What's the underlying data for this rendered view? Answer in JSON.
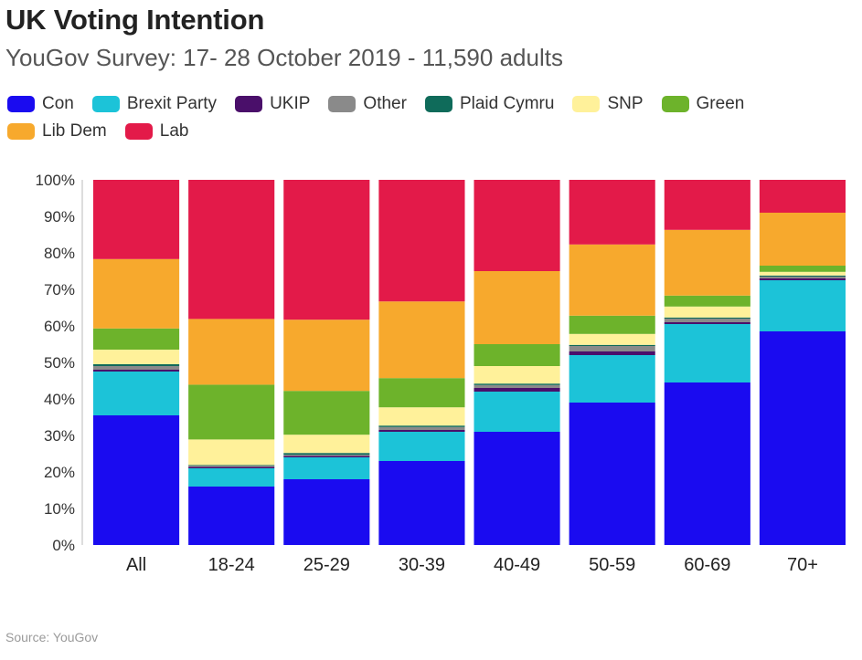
{
  "title": "UK Voting Intention",
  "subtitle": "YouGov Survey: 17- 28 October 2019 - 11,590 adults",
  "source": "Source: YouGov",
  "chart_data": {
    "type": "bar",
    "stacked": true,
    "title": "UK Voting Intention",
    "subtitle": "YouGov Survey: 17- 28 October 2019 - 11,590 adults",
    "xlabel": "",
    "ylabel": "",
    "ylim": [
      0,
      100
    ],
    "yticks": [
      "0%",
      "10%",
      "20%",
      "30%",
      "40%",
      "50%",
      "60%",
      "70%",
      "80%",
      "90%",
      "100%"
    ],
    "legend_position": "top",
    "grid": false,
    "categories": [
      "All",
      "18-24",
      "25-29",
      "30-39",
      "40-49",
      "50-59",
      "60-69",
      "70+"
    ],
    "series": [
      {
        "name": "Con",
        "color": "#1a0bf0",
        "values": [
          35.5,
          16,
          18,
          23,
          31,
          39,
          44.5,
          58.5
        ]
      },
      {
        "name": "Brexit Party",
        "color": "#1cc3d8",
        "values": [
          12,
          5,
          6,
          8,
          11,
          13,
          16,
          14
        ]
      },
      {
        "name": "UKIP",
        "color": "#4a0f6a",
        "values": [
          0.5,
          0.4,
          0.4,
          0.5,
          1,
          1,
          0.5,
          0.5
        ]
      },
      {
        "name": "Other",
        "color": "#8a8a8a",
        "values": [
          1,
          0.3,
          0.3,
          0.8,
          0.8,
          1.5,
          1,
          0.5
        ]
      },
      {
        "name": "Plaid Cymru",
        "color": "#0f6b5a",
        "values": [
          0.5,
          0.2,
          0.5,
          0.4,
          0.4,
          0.3,
          0.3,
          0.3
        ]
      },
      {
        "name": "SNP",
        "color": "#fff19a",
        "values": [
          4,
          7,
          5,
          5,
          4.8,
          3,
          3,
          1
        ]
      },
      {
        "name": "Green",
        "color": "#6db32b",
        "values": [
          5.8,
          15,
          12,
          8,
          6,
          5,
          3,
          1.7
        ]
      },
      {
        "name": "Lib Dem",
        "color": "#f7a92d",
        "values": [
          19,
          18,
          19.5,
          21,
          20,
          19.5,
          18,
          14.5
        ]
      },
      {
        "name": "Lab",
        "color": "#e31a49",
        "values": [
          21.7,
          38.1,
          38.3,
          33.3,
          25,
          17.7,
          13.7,
          9
        ]
      }
    ]
  }
}
